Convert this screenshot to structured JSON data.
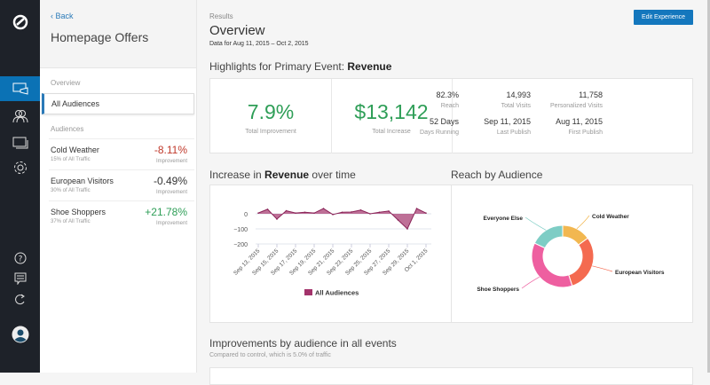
{
  "rail": {
    "logo": "logo-icon",
    "items": [
      {
        "icon": "experiences-icon",
        "active": true
      },
      {
        "icon": "audiences-icon"
      },
      {
        "icon": "layers-icon"
      },
      {
        "icon": "gear-icon"
      }
    ],
    "bottom": [
      {
        "icon": "help-icon"
      },
      {
        "icon": "feedback-icon"
      },
      {
        "icon": "refresh-icon"
      },
      {
        "icon": "avatar-icon"
      }
    ]
  },
  "panel": {
    "back": "‹ Back",
    "title": "Homepage Offers",
    "overview_label": "Overview",
    "all_audiences": "All Audiences",
    "audiences_label": "Audiences",
    "audiences": [
      {
        "name": "Cold Weather",
        "traffic": "15% of All Traffic",
        "value": "-8.11%",
        "label": "Improvement",
        "color": "#c0392b"
      },
      {
        "name": "European Visitors",
        "traffic": "30% of All Traffic",
        "value": "-0.49%",
        "label": "Improvement",
        "color": "#333333"
      },
      {
        "name": "Shoe Shoppers",
        "traffic": "37% of All Traffic",
        "value": "+21.78%",
        "label": "Improvement",
        "color": "#2e9e57"
      }
    ]
  },
  "header": {
    "breadcrumb": "Results",
    "title": "Overview",
    "date_range": "Data for Aug 11, 2015 – Oct 2, 2015",
    "edit_button": "Edit Experience"
  },
  "highlights": {
    "title_prefix": "Highlights for Primary Event: ",
    "event": "Revenue",
    "total_improvement": {
      "value": "7.9%",
      "label": "Total Improvement"
    },
    "total_increase": {
      "value": "$13,142",
      "label": "Total Increase"
    },
    "stats": [
      {
        "value": "82.3%",
        "label": "Reach"
      },
      {
        "value": "14,993",
        "label": "Total Visits"
      },
      {
        "value": "11,758",
        "label": "Personalized Visits"
      },
      {
        "value": "52 Days",
        "label": "Days Running"
      },
      {
        "value": "Sep 11, 2015",
        "label": "Last Publish"
      },
      {
        "value": "Aug 11, 2015",
        "label": "First Publish"
      }
    ]
  },
  "revenue_chart": {
    "title_prefix": "Increase in ",
    "event": "Revenue",
    "title_suffix": " over time"
  },
  "reach_chart": {
    "title": "Reach by Audience"
  },
  "improvements": {
    "title": "Improvements by audience in all events",
    "subtitle": "Compared to control, which is 5.0% of traffic"
  },
  "chart_data": [
    {
      "type": "area",
      "x": [
        "Sep 13, 2015",
        "Sep 14, 2015",
        "Sep 15, 2015",
        "Sep 16, 2015",
        "Sep 17, 2015",
        "Sep 18, 2015",
        "Sep 19, 2015",
        "Sep 20, 2015",
        "Sep 21, 2015",
        "Sep 22, 2015",
        "Sep 23, 2015",
        "Sep 24, 2015",
        "Sep 25, 2015",
        "Sep 26, 2015",
        "Sep 27, 2015",
        "Sep 28, 2015",
        "Sep 29, 2015",
        "Sep 30, 2015",
        "Oct 1, 2015"
      ],
      "tick_labels": [
        "Sep 13, 2015",
        "Sep 15, 2015",
        "Sep 17, 2015",
        "Sep 19, 2015",
        "Sep 21, 2015",
        "Sep 23, 2015",
        "Sep 25, 2015",
        "Sep 27, 2015",
        "Sep 29, 2015",
        "Oct 1, 2015"
      ],
      "y_ticks": [
        "0",
        "−100",
        "−200"
      ],
      "ylim": [
        -200,
        60
      ],
      "series": [
        {
          "name": "All Audiences",
          "color": "#a3336b",
          "values": [
            5,
            30,
            -35,
            20,
            5,
            10,
            5,
            35,
            -5,
            10,
            12,
            25,
            0,
            10,
            18,
            -41,
            -100,
            35,
            5
          ]
        }
      ],
      "legend": "bottom",
      "grid": true
    },
    {
      "type": "pie",
      "donut": true,
      "slices": [
        {
          "label": "Cold Weather",
          "value": 15,
          "color": "#f2b750"
        },
        {
          "label": "European Visitors",
          "value": 30,
          "color": "#f46a50"
        },
        {
          "label": "Shoe Shoppers",
          "value": 37,
          "color": "#ee5fa0"
        },
        {
          "label": "Everyone Else",
          "value": 18,
          "color": "#7ecdc5"
        }
      ]
    }
  ]
}
